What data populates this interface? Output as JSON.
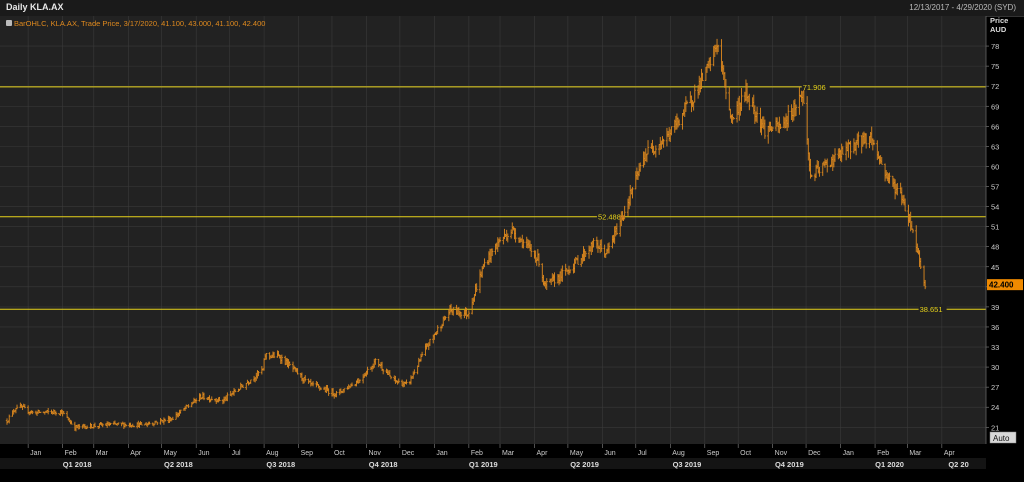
{
  "header": {
    "title": "Daily KLA.AX",
    "date_range": "12/13/2017 - 4/29/2020 (SYD)"
  },
  "legend": {
    "text": "BarOHLC, KLA.AX, Trade Price,  3/17/2020, 41.100, 43.000, 41.100, 42.400"
  },
  "colors": {
    "background": "#222222",
    "bars": "#e08a1e",
    "level_lines": "#e6d21a",
    "last_price_bg": "#f08a00",
    "grid": "#3a3a3a"
  },
  "chart_data": {
    "type": "bar",
    "subtype": "ohlc",
    "ylabel": "Price AUD",
    "y_axis_title": [
      "Price",
      "AUD"
    ],
    "ylim": [
      18.5,
      81
    ],
    "yticks": [
      21,
      24,
      27,
      30,
      33,
      36,
      39,
      42,
      45,
      48,
      51,
      54,
      57,
      60,
      63,
      66,
      69,
      72,
      75,
      78
    ],
    "grid": true,
    "x_date_range": [
      "2017-12-13",
      "2020-04-29"
    ],
    "month_ticks": [
      {
        "label": "Jan",
        "date": "2018-01-01"
      },
      {
        "label": "Feb",
        "date": "2018-02-01"
      },
      {
        "label": "Mar",
        "date": "2018-03-01"
      },
      {
        "label": "Apr",
        "date": "2018-04-01"
      },
      {
        "label": "May",
        "date": "2018-05-01"
      },
      {
        "label": "Jun",
        "date": "2018-06-01"
      },
      {
        "label": "Jul",
        "date": "2018-07-01"
      },
      {
        "label": "Aug",
        "date": "2018-08-01"
      },
      {
        "label": "Sep",
        "date": "2018-09-01"
      },
      {
        "label": "Oct",
        "date": "2018-10-01"
      },
      {
        "label": "Nov",
        "date": "2018-11-01"
      },
      {
        "label": "Dec",
        "date": "2018-12-01"
      },
      {
        "label": "Jan",
        "date": "2019-01-01"
      },
      {
        "label": "Feb",
        "date": "2019-02-01"
      },
      {
        "label": "Mar",
        "date": "2019-03-01"
      },
      {
        "label": "Apr",
        "date": "2019-04-01"
      },
      {
        "label": "May",
        "date": "2019-05-01"
      },
      {
        "label": "Jun",
        "date": "2019-06-01"
      },
      {
        "label": "Jul",
        "date": "2019-07-01"
      },
      {
        "label": "Aug",
        "date": "2019-08-01"
      },
      {
        "label": "Sep",
        "date": "2019-09-01"
      },
      {
        "label": "Oct",
        "date": "2019-10-01"
      },
      {
        "label": "Nov",
        "date": "2019-11-01"
      },
      {
        "label": "Dec",
        "date": "2019-12-01"
      },
      {
        "label": "Jan",
        "date": "2020-01-01"
      },
      {
        "label": "Feb",
        "date": "2020-02-01"
      },
      {
        "label": "Mar",
        "date": "2020-03-01"
      },
      {
        "label": "Apr",
        "date": "2020-04-01"
      }
    ],
    "quarter_ticks": [
      {
        "label": "Q1 2018",
        "date": "2018-02-14"
      },
      {
        "label": "Q2 2018",
        "date": "2018-05-16"
      },
      {
        "label": "Q3 2018",
        "date": "2018-08-16"
      },
      {
        "label": "Q4 2018",
        "date": "2018-11-16"
      },
      {
        "label": "Q1 2019",
        "date": "2019-02-14"
      },
      {
        "label": "Q2 2019",
        "date": "2019-05-16"
      },
      {
        "label": "Q3 2019",
        "date": "2019-08-16"
      },
      {
        "label": "Q4 2019",
        "date": "2019-11-16"
      },
      {
        "label": "Q1 2020",
        "date": "2020-02-14"
      },
      {
        "label": "Q2 20",
        "date": "2020-04-16"
      }
    ],
    "levels": [
      {
        "value": 71.906,
        "label": "71.906",
        "label_date": "2019-11-28"
      },
      {
        "value": 52.488,
        "label": "52.488",
        "label_date": "2019-05-28"
      },
      {
        "value": 38.651,
        "label": "38.651",
        "label_date": "2020-03-12"
      }
    ],
    "last_price": {
      "value": 42.4,
      "label": "42.400"
    },
    "auto_button": "Auto",
    "series": [
      {
        "price_path": [
          [
            "2017-12-13",
            22.0
          ],
          [
            "2017-12-22",
            24.2
          ],
          [
            "2018-01-05",
            23.2
          ],
          [
            "2018-01-31",
            23.3
          ],
          [
            "2018-02-12",
            21.0
          ],
          [
            "2018-03-15",
            21.4
          ],
          [
            "2018-04-15",
            21.4
          ],
          [
            "2018-05-10",
            22.3
          ],
          [
            "2018-06-05",
            25.6
          ],
          [
            "2018-06-25",
            25.0
          ],
          [
            "2018-07-15",
            27.5
          ],
          [
            "2018-07-31",
            29.6
          ],
          [
            "2018-08-02",
            31.8
          ],
          [
            "2018-08-15",
            31.6
          ],
          [
            "2018-09-10",
            27.5
          ],
          [
            "2018-10-05",
            26.0
          ],
          [
            "2018-10-25",
            28.0
          ],
          [
            "2018-11-10",
            31.0
          ],
          [
            "2018-11-25",
            28.0
          ],
          [
            "2018-12-08",
            27.3
          ],
          [
            "2018-12-25",
            33.0
          ],
          [
            "2019-01-15",
            38.5
          ],
          [
            "2019-01-31",
            38.0
          ],
          [
            "2019-02-15",
            45.5
          ],
          [
            "2019-03-01",
            49.0
          ],
          [
            "2019-03-12",
            50.5
          ],
          [
            "2019-04-05",
            46.0
          ],
          [
            "2019-04-10",
            42.0
          ],
          [
            "2019-05-01",
            44.5
          ],
          [
            "2019-05-25",
            48.5
          ],
          [
            "2019-06-05",
            47.0
          ],
          [
            "2019-06-20",
            53.0
          ],
          [
            "2019-07-10",
            62.0
          ],
          [
            "2019-07-30",
            64.5
          ],
          [
            "2019-08-20",
            70.0
          ],
          [
            "2019-09-05",
            75.0
          ],
          [
            "2019-09-12",
            78.5
          ],
          [
            "2019-09-25",
            67.0
          ],
          [
            "2019-10-08",
            71.0
          ],
          [
            "2019-10-25",
            65.5
          ],
          [
            "2019-11-10",
            66.0
          ],
          [
            "2019-11-28",
            71.0
          ],
          [
            "2019-12-05",
            58.5
          ],
          [
            "2019-12-25",
            61.0
          ],
          [
            "2020-01-15",
            63.5
          ],
          [
            "2020-01-28",
            64.5
          ],
          [
            "2020-02-10",
            59.0
          ],
          [
            "2020-02-25",
            55.5
          ],
          [
            "2020-03-05",
            51.0
          ],
          [
            "2020-03-10",
            47.5
          ],
          [
            "2020-03-17",
            42.4
          ]
        ]
      }
    ]
  }
}
